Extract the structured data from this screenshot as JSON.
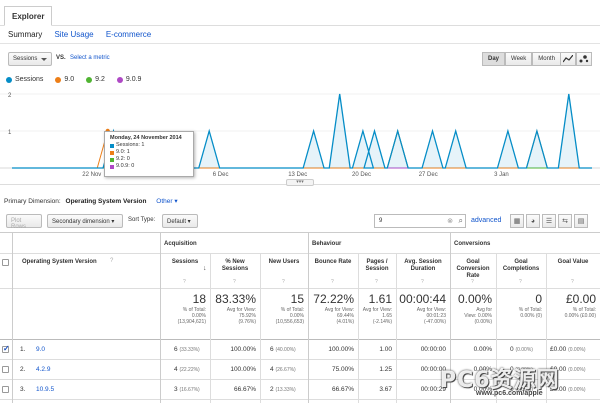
{
  "header": {
    "tab": "Explorer"
  },
  "subnav": {
    "summary": "Summary",
    "site_usage": "Site Usage",
    "ecommerce": "E-commerce"
  },
  "metric": {
    "selected": "Sessions",
    "vs": "VS.",
    "select_metric": "Select a metric"
  },
  "granularity": {
    "day": "Day",
    "week": "Week",
    "month": "Month",
    "selected": "Day"
  },
  "legend": [
    {
      "label": "Sessions",
      "color": "#058dc7"
    },
    {
      "label": "9.0",
      "color": "#ed7e17"
    },
    {
      "label": "9.2",
      "color": "#50b432"
    },
    {
      "label": "9.0.9",
      "color": "#af49c5"
    }
  ],
  "chart_data": {
    "type": "line",
    "y_ticks": [
      "2",
      "1"
    ],
    "x_ticks": [
      "22 Nov",
      "29 Nov",
      "6 Dec",
      "13 Dec",
      "20 Dec",
      "27 Dec",
      "3 Jan"
    ],
    "ylim": [
      0,
      2
    ],
    "series": [
      {
        "name": "Sessions",
        "color": "#058dc7",
        "spikes": [
          [
            0.175,
            1
          ],
          [
            0.34,
            1
          ],
          [
            0.52,
            1
          ],
          [
            0.565,
            2
          ],
          [
            0.605,
            1
          ],
          [
            0.625,
            1
          ],
          [
            0.665,
            1
          ],
          [
            0.725,
            1
          ],
          [
            0.765,
            1
          ],
          [
            0.855,
            1
          ],
          [
            0.905,
            1
          ],
          [
            0.96,
            2
          ]
        ]
      },
      {
        "name": "9.0",
        "color": "#ed7e17",
        "spikes": [
          [
            0.165,
            1
          ],
          [
            0.665,
            1
          ],
          [
            0.905,
            1
          ]
        ]
      },
      {
        "name": "9.2",
        "color": "#50b432",
        "spikes": [
          [
            0.665,
            1
          ]
        ]
      },
      {
        "name": "9.0.9",
        "color": "#af49c5",
        "spikes": []
      }
    ]
  },
  "tooltip": {
    "date": "Monday, 24 November 2014",
    "rows": [
      {
        "label": "Sessions: 1",
        "color": "#058dc7"
      },
      {
        "label": "9.0: 1",
        "color": "#ed7e17"
      },
      {
        "label": "9.2: 0",
        "color": "#50b432"
      },
      {
        "label": "9.0.9: 0",
        "color": "#af49c5"
      }
    ]
  },
  "primary_dimension": {
    "label": "Primary Dimension:",
    "value": "Operating System Version",
    "other": "Other"
  },
  "toolbar": {
    "plot_rows": "Plot Rows",
    "secondary_dimension": "Secondary dimension",
    "sort_type_label": "Sort Type:",
    "sort_type": "Default",
    "search_value": "9",
    "advanced": "advanced"
  },
  "table": {
    "dim_header": "Operating System Version",
    "groups": {
      "acquisition": "Acquisition",
      "behaviour": "Behaviour",
      "conversions": "Conversions"
    },
    "columns": [
      "Sessions",
      "% New Sessions",
      "New Users",
      "Bounce Rate",
      "Pages / Session",
      "Avg. Session Duration",
      "Goal Conversion Rate",
      "Goal Completions",
      "Goal Value"
    ],
    "totals": [
      {
        "big": "18",
        "small": [
          "% of Total:",
          "0.00%",
          "(13,904,621)"
        ]
      },
      {
        "big": "83.33%",
        "small": [
          "Avg for View:",
          "75.92%",
          "(9.76%)"
        ]
      },
      {
        "big": "15",
        "small": [
          "% of Total:",
          "0.00%",
          "(10,556,653)"
        ]
      },
      {
        "big": "72.22%",
        "small": [
          "Avg for View:",
          "69.44%",
          "(4.01%)"
        ]
      },
      {
        "big": "1.61",
        "small": [
          "Avg for View:",
          "1.65",
          "(-2.14%)"
        ]
      },
      {
        "big": "00:00:44",
        "small": [
          "Avg for View:",
          "00:01:23",
          "(-47.00%)"
        ]
      },
      {
        "big": "0.00%",
        "small": [
          "Avg for",
          "View: 0.00%",
          "(0.00%)"
        ]
      },
      {
        "big": "0",
        "small": [
          "% of Total:",
          "0.00% (0)",
          ""
        ]
      },
      {
        "big": "£0.00",
        "small": [
          "% of Total:",
          "0.00% (£0.00)",
          ""
        ]
      }
    ],
    "rows": [
      {
        "index": "1.",
        "name": "9.0",
        "checked": true,
        "sessions": "6",
        "sessions_pct": "(33.33%)",
        "new_sessions": "100.00%",
        "new_users": "6",
        "new_users_pct": "(40.00%)",
        "bounce": "100.00%",
        "pages": "1.00",
        "duration": "00:00:00",
        "gcr": "0.00%",
        "gc": "0",
        "gc_pct": "(0.00%)",
        "gv": "£0.00",
        "gv_pct": "(0.00%)"
      },
      {
        "index": "2.",
        "name": "4.2.9",
        "checked": false,
        "sessions": "4",
        "sessions_pct": "(22.22%)",
        "new_sessions": "100.00%",
        "new_users": "4",
        "new_users_pct": "(26.67%)",
        "bounce": "75.00%",
        "pages": "1.25",
        "duration": "00:00:00",
        "gcr": "0.00%",
        "gc": "0",
        "gc_pct": "(0.00%)",
        "gv": "£0.00",
        "gv_pct": "(0.00%)"
      },
      {
        "index": "3.",
        "name": "10.9.5",
        "checked": false,
        "sessions": "3",
        "sessions_pct": "(16.67%)",
        "new_sessions": "66.67%",
        "new_users": "2",
        "new_users_pct": "(13.33%)",
        "bounce": "66.67%",
        "pages": "3.67",
        "duration": "00:00:29",
        "gcr": "0.00%",
        "gc": "0",
        "gc_pct": "(0.00%)",
        "gv": "£0.00",
        "gv_pct": "(0.00%)"
      }
    ]
  },
  "watermark": {
    "text": "PC6资源网",
    "url": "www.pc6.com/apple"
  }
}
